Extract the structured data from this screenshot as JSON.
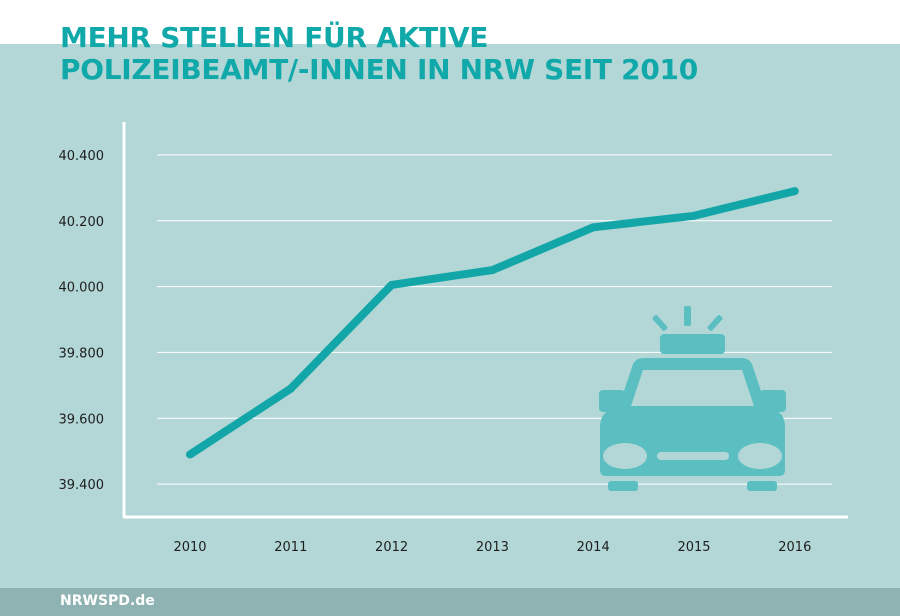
{
  "title_lines": [
    "MEHR STELLEN FÜR AKTIVE",
    "POLIZEIBEAMT/-INNEN IN NRW SEIT 2010"
  ],
  "footer": {
    "text": "NRWSPD.de"
  },
  "colors": {
    "line": "#13a6a8",
    "background": "#b3d7d6",
    "title": "#11a8a9",
    "icon": "#5bbfc2",
    "footer_bg": "#8fb3b2"
  },
  "icon": {
    "name": "police-car-icon"
  },
  "chart_data": {
    "type": "line",
    "title": "MEHR STELLEN FÜR AKTIVE POLIZEIBEAMT/-INNEN IN NRW SEIT 2010",
    "xlabel": "",
    "ylabel": "",
    "categories": [
      "2010",
      "2011",
      "2012",
      "2013",
      "2014",
      "2015",
      "2016"
    ],
    "series": [
      {
        "values": [
          39490,
          39690,
          40005,
          40050,
          40180,
          40215,
          40290
        ]
      }
    ],
    "ylim": [
      39300,
      40500
    ],
    "yticks": [
      39400,
      39600,
      39800,
      40000,
      40200,
      40400
    ],
    "ytick_labels": [
      "39.400",
      "39.600",
      "39.800",
      "40.000",
      "40.200",
      "40.400"
    ],
    "grid": true,
    "legend": "none"
  }
}
